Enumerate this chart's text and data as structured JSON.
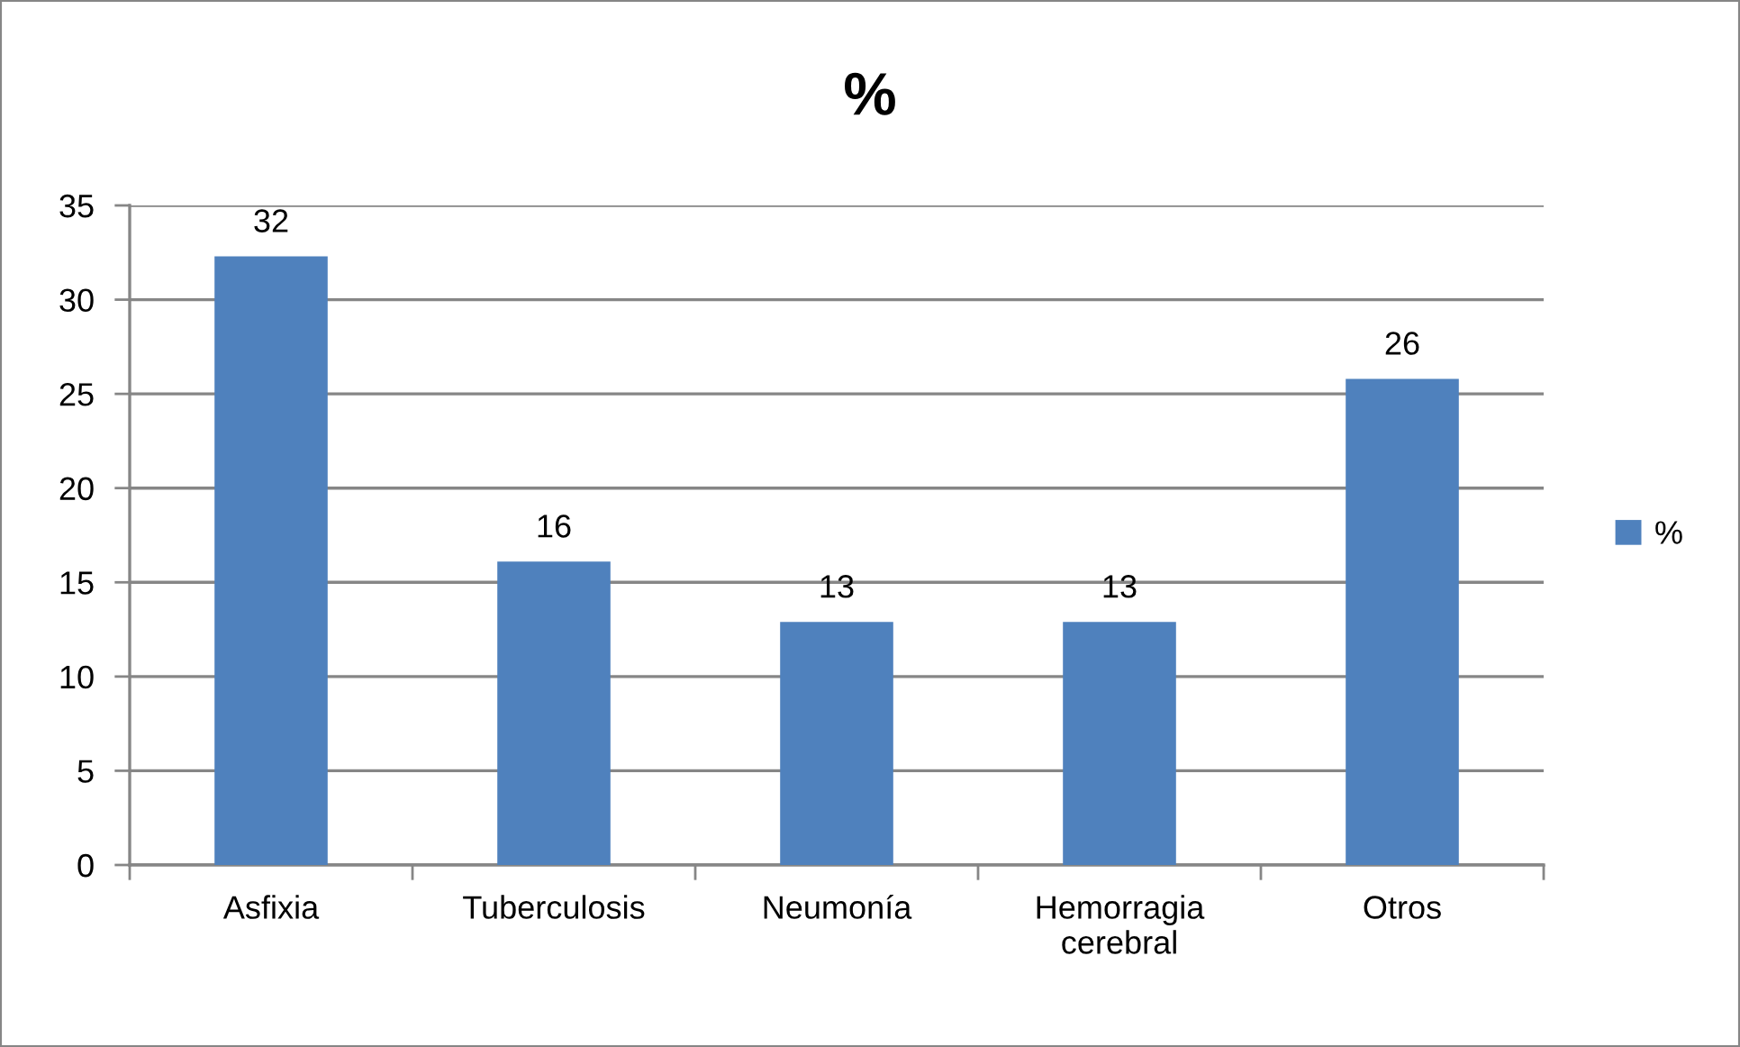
{
  "chart_data": {
    "type": "bar",
    "title": "%",
    "categories": [
      "Asfixia",
      "Tuberculosis",
      "Neumonía",
      "Hemorragia cerebral",
      "Otros"
    ],
    "series": [
      {
        "name": "%",
        "color": "#4f81bd",
        "values": [
          32.3,
          16.1,
          12.9,
          12.9,
          25.8
        ],
        "value_labels": [
          "32",
          "16",
          "13",
          "13",
          "26"
        ]
      }
    ],
    "ylim": [
      0,
      35
    ],
    "yticks": [
      0,
      5,
      10,
      15,
      20,
      25,
      30,
      35
    ],
    "grid": "y",
    "legend": "right"
  }
}
